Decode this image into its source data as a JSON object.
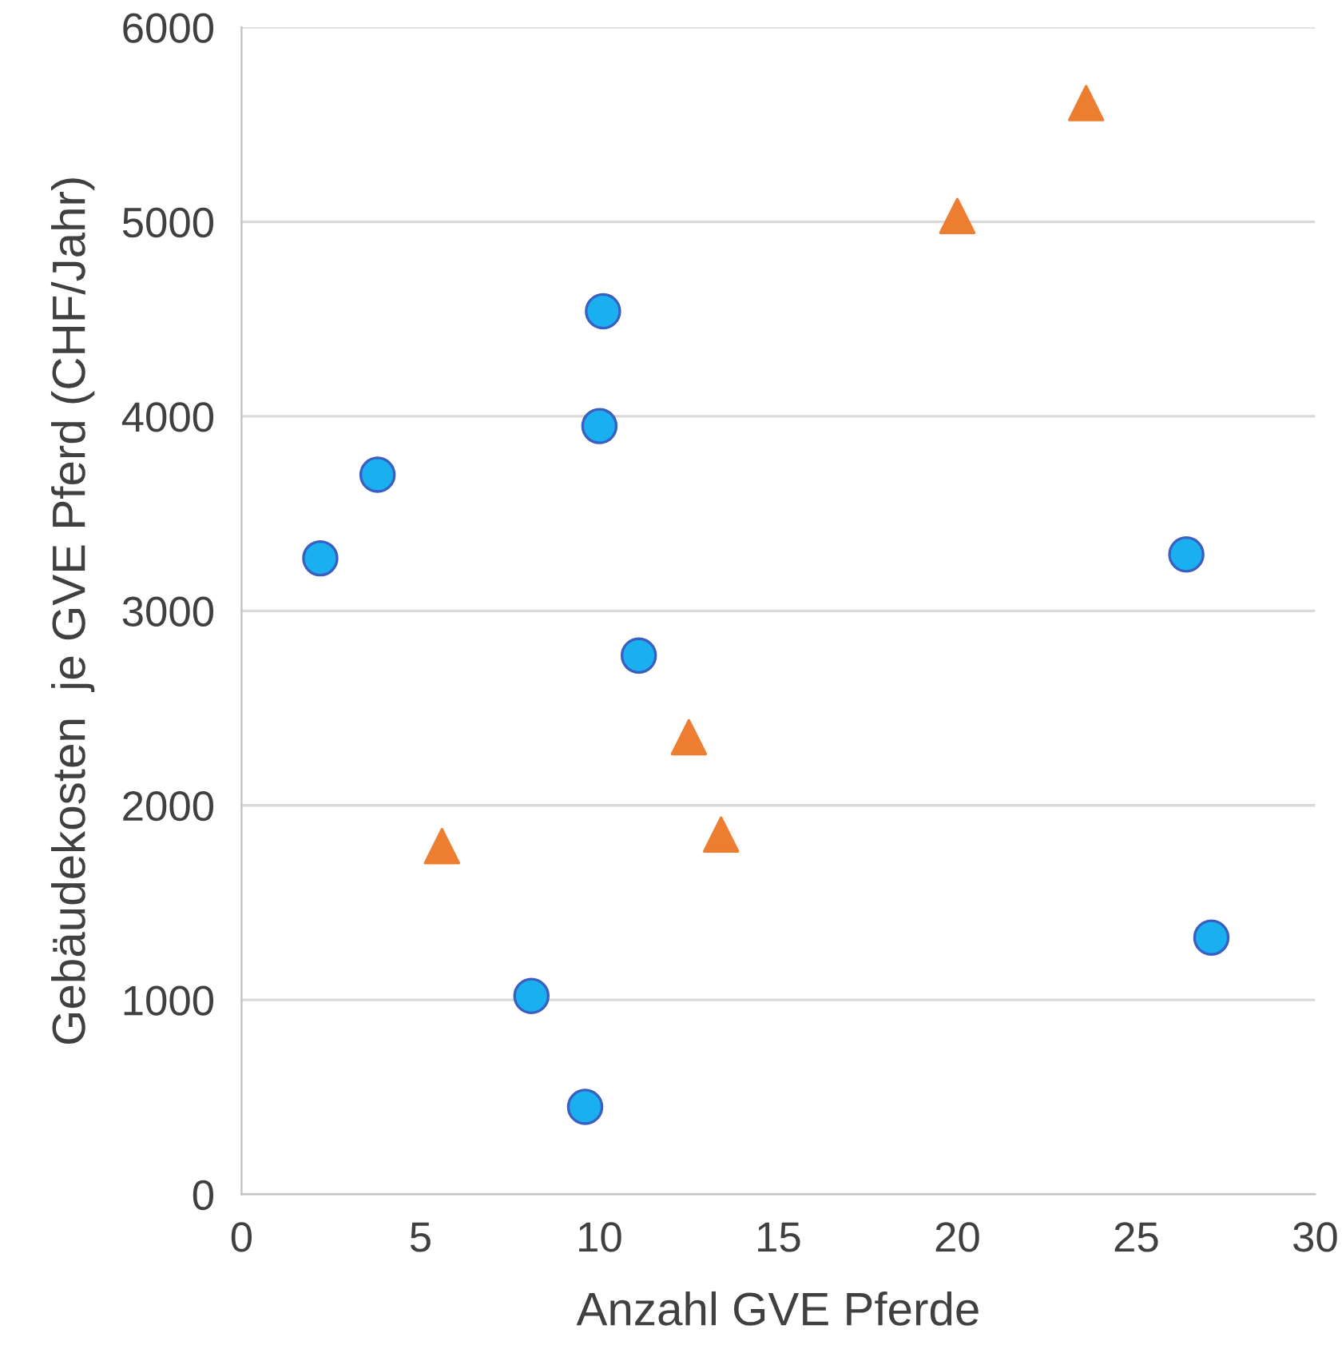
{
  "chart_data": {
    "type": "scatter",
    "xlabel": "Anzahl GVE Pferde",
    "ylabel": "Gebäudekosten  je GVE Pferd (CHF/Jahr)",
    "xlim": [
      0,
      30
    ],
    "xticks": [
      0,
      5,
      10,
      15,
      20,
      25,
      30
    ],
    "ylim": [
      0,
      6000
    ],
    "yticks": [
      0,
      1000,
      2000,
      3000,
      4000,
      5000,
      6000
    ],
    "grid": "y",
    "legend": false,
    "series": [
      {
        "color": "#1ab0f0",
        "marker": "circle",
        "x": [
          2.2,
          3.8,
          10.1,
          10.0,
          11.1,
          8.1,
          9.6,
          26.4,
          27.1
        ],
        "values": [
          3270,
          3700,
          4540,
          3950,
          2770,
          1020,
          450,
          3290,
          1320
        ]
      },
      {
        "color": "#ed7d31",
        "marker": "triangle",
        "x": [
          5.6,
          12.5,
          13.4,
          20.0,
          23.6
        ],
        "values": [
          1790,
          2350,
          1850,
          5030,
          5610
        ]
      }
    ]
  }
}
